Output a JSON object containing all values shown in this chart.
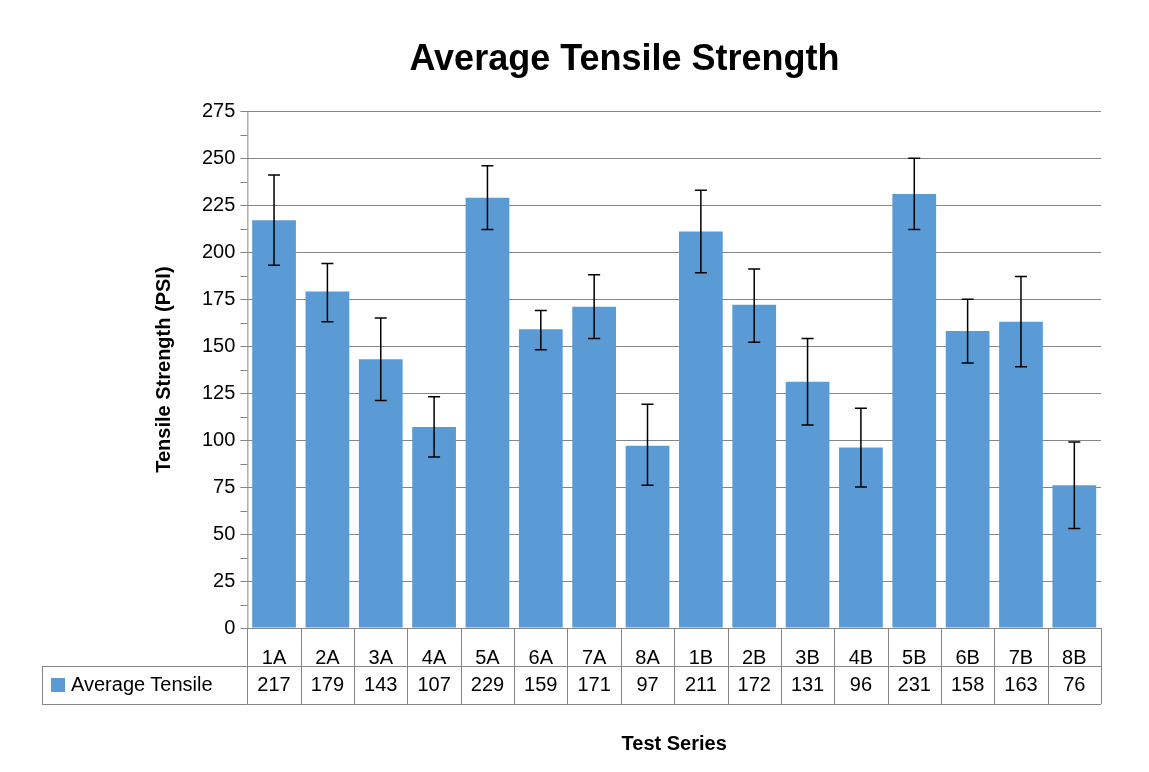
{
  "chart_data": {
    "type": "bar",
    "title": "Average Tensile Strength",
    "xlabel": "Test Series",
    "ylabel": "Tensile Strength (PSI)",
    "categories": [
      "1A",
      "2A",
      "3A",
      "4A",
      "5A",
      "6A",
      "7A",
      "8A",
      "1B",
      "2B",
      "3B",
      "4B",
      "5B",
      "6B",
      "7B",
      "8B"
    ],
    "series": [
      {
        "name": "Average Tensile",
        "color": "#5b9bd5",
        "values": [
          217,
          179,
          143,
          107,
          229,
          159,
          171,
          97,
          211,
          172,
          131,
          96,
          231,
          158,
          163,
          76
        ],
        "errors": [
          [
            193,
            241
          ],
          [
            163,
            194
          ],
          [
            121,
            165
          ],
          [
            91,
            123
          ],
          [
            212,
            246
          ],
          [
            148,
            169
          ],
          [
            154,
            188
          ],
          [
            76,
            119
          ],
          [
            189,
            233
          ],
          [
            152,
            191
          ],
          [
            108,
            154
          ],
          [
            75,
            117
          ],
          [
            212,
            250
          ],
          [
            141,
            175
          ],
          [
            139,
            187
          ],
          [
            53,
            99
          ]
        ]
      }
    ],
    "ylim": [
      0,
      275
    ],
    "yticks": [
      0,
      {
        "value": 12.5,
        "label": null
      },
      25,
      {
        "value": 37.5,
        "label": null
      },
      50,
      {
        "value": 62.5,
        "label": null
      },
      75,
      {
        "value": 87.5,
        "label": null
      },
      100,
      {
        "value": 112.5,
        "label": null
      },
      125,
      {
        "value": 137.5,
        "label": null
      },
      150,
      {
        "value": 162.5,
        "label": null
      },
      175,
      {
        "value": 187.5,
        "label": null
      },
      200,
      {
        "value": 212.5,
        "label": null
      },
      225,
      {
        "value": 237.5,
        "label": null
      },
      250,
      {
        "value": 262.5,
        "label": null
      },
      275
    ],
    "grid": "y",
    "legend": "bottom",
    "data_labels": true
  }
}
